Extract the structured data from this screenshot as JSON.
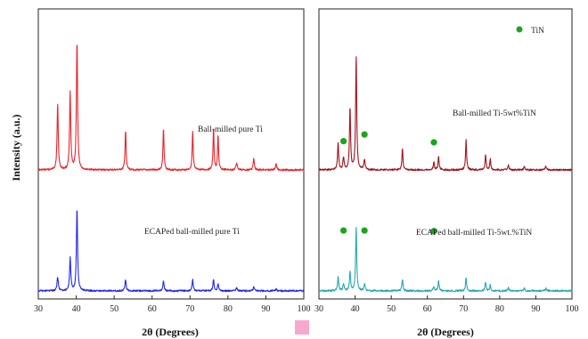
{
  "chart_data": [
    {
      "type": "line",
      "panel": "left",
      "xlabel": "2θ (Degrees)",
      "ylabel": "Intensity (a.u.)",
      "xlim": [
        30,
        100
      ],
      "x_ticks": [
        "30",
        "40",
        "50",
        "60",
        "70",
        "80",
        "90",
        "100"
      ],
      "grid": false,
      "series": [
        {
          "name": "Ball-milled pure Ti",
          "color": "#e8242b",
          "baseline": 0.555,
          "noise": 0.006,
          "peaks": [
            [
              35.1,
              0.228,
              0.18
            ],
            [
              38.4,
              0.266,
              0.18
            ],
            [
              40.2,
              0.445,
              0.18
            ],
            [
              53.0,
              0.138,
              0.16
            ],
            [
              63.0,
              0.145,
              0.16
            ],
            [
              70.7,
              0.132,
              0.16
            ],
            [
              76.2,
              0.148,
              0.15
            ],
            [
              77.4,
              0.122,
              0.15
            ],
            [
              82.3,
              0.025,
              0.2
            ],
            [
              86.8,
              0.038,
              0.18
            ],
            [
              92.7,
              0.02,
              0.2
            ]
          ]
        },
        {
          "name": "ECAPed ball-milled pure Ti",
          "color": "#2228e8",
          "baseline": 0.972,
          "noise": 0.006,
          "peaks": [
            [
              35.1,
              0.048,
              0.2
            ],
            [
              38.4,
              0.117,
              0.18
            ],
            [
              40.2,
              0.286,
              0.18
            ],
            [
              53.0,
              0.039,
              0.18
            ],
            [
              63.0,
              0.033,
              0.18
            ],
            [
              70.7,
              0.038,
              0.18
            ],
            [
              76.2,
              0.04,
              0.17
            ],
            [
              77.4,
              0.026,
              0.17
            ],
            [
              82.3,
              0.01,
              0.2
            ],
            [
              86.8,
              0.012,
              0.2
            ],
            [
              92.7,
              0.006,
              0.2
            ]
          ]
        }
      ],
      "annotations": [
        "Ball-milled pure Ti",
        "ECAPed ball-milled pure Ti"
      ]
    },
    {
      "type": "line",
      "panel": "right",
      "xlabel": "2θ (Degrees)",
      "xlim": [
        30,
        100
      ],
      "x_ticks": [
        "30",
        "40",
        "50",
        "60",
        "70",
        "80",
        "90",
        "100"
      ],
      "grid": false,
      "legend": {
        "label": "TiN",
        "marker_color": "#1aa51a",
        "position": "top-right"
      },
      "series": [
        {
          "name": "Ball-milled Ti-5wt%TiN",
          "color": "#a01420",
          "baseline": 0.555,
          "noise": 0.006,
          "peaks": [
            [
              35.3,
              0.093,
              0.18
            ],
            [
              36.8,
              0.042,
              0.2
            ],
            [
              38.6,
              0.214,
              0.18
            ],
            [
              40.3,
              0.393,
              0.18
            ],
            [
              42.6,
              0.036,
              0.2
            ],
            [
              53.1,
              0.074,
              0.17
            ],
            [
              61.8,
              0.025,
              0.2
            ],
            [
              63.1,
              0.045,
              0.17
            ],
            [
              70.7,
              0.104,
              0.17
            ],
            [
              76.1,
              0.05,
              0.17
            ],
            [
              77.4,
              0.038,
              0.16
            ],
            [
              82.4,
              0.016,
              0.2
            ],
            [
              86.8,
              0.01,
              0.2
            ],
            [
              92.8,
              0.014,
              0.2
            ]
          ]
        },
        {
          "name": "ECAPed ball-milled Ti-5wt.%TiN",
          "color": "#27a8b0",
          "baseline": 0.972,
          "noise": 0.006,
          "peaks": [
            [
              35.3,
              0.048,
              0.18
            ],
            [
              36.8,
              0.025,
              0.2
            ],
            [
              38.6,
              0.066,
              0.18
            ],
            [
              40.3,
              0.221,
              0.18
            ],
            [
              42.6,
              0.022,
              0.2
            ],
            [
              53.1,
              0.041,
              0.17
            ],
            [
              61.8,
              0.016,
              0.2
            ],
            [
              63.1,
              0.033,
              0.17
            ],
            [
              70.7,
              0.043,
              0.17
            ],
            [
              76.1,
              0.03,
              0.17
            ],
            [
              77.4,
              0.022,
              0.16
            ],
            [
              82.4,
              0.01,
              0.2
            ],
            [
              86.8,
              0.008,
              0.2
            ],
            [
              92.8,
              0.008,
              0.2
            ]
          ]
        }
      ],
      "tin_markers": [
        {
          "x": 36.8,
          "level": 0.456
        },
        {
          "x": 42.6,
          "level": 0.433
        },
        {
          "x": 61.8,
          "level": 0.46
        },
        {
          "x": 36.8,
          "level": 0.764
        },
        {
          "x": 42.6,
          "level": 0.764
        },
        {
          "x": 61.8,
          "level": 0.766
        }
      ],
      "annotations": [
        "Ball-milled Ti-5wt%TiN",
        "ECAPed ball-milled Ti-5wt.%TiN"
      ]
    }
  ]
}
